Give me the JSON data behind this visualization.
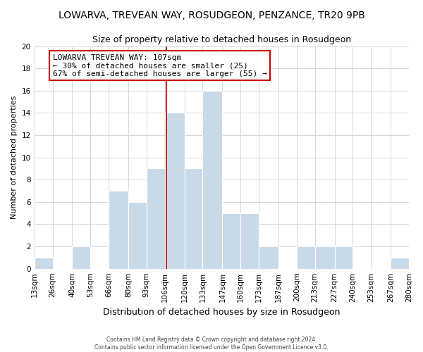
{
  "title": "LOWARVA, TREVEAN WAY, ROSUDGEON, PENZANCE, TR20 9PB",
  "subtitle": "Size of property relative to detached houses in Rosudgeon",
  "xlabel": "Distribution of detached houses by size in Rosudgeon",
  "ylabel": "Number of detached properties",
  "footer_line1": "Contains HM Land Registry data © Crown copyright and database right 2024.",
  "footer_line2": "Contains public sector information licensed under the Open Government Licence v3.0.",
  "bin_edges": [
    13,
    26,
    40,
    53,
    66,
    80,
    93,
    106,
    120,
    133,
    147,
    160,
    173,
    187,
    200,
    213,
    227,
    240,
    253,
    267,
    280
  ],
  "bin_labels": [
    "13sqm",
    "26sqm",
    "40sqm",
    "53sqm",
    "66sqm",
    "80sqm",
    "93sqm",
    "106sqm",
    "120sqm",
    "133sqm",
    "147sqm",
    "160sqm",
    "173sqm",
    "187sqm",
    "200sqm",
    "213sqm",
    "227sqm",
    "240sqm",
    "253sqm",
    "267sqm",
    "280sqm"
  ],
  "counts": [
    1,
    0,
    2,
    0,
    7,
    6,
    9,
    14,
    9,
    16,
    5,
    5,
    2,
    0,
    2,
    2,
    2,
    0,
    0,
    1
  ],
  "bar_color": "#c8d9e8",
  "bar_edgecolor": "#ffffff",
  "annotation_title": "LOWARVA TREVEAN WAY: 107sqm",
  "annotation_line2": "← 30% of detached houses are smaller (25)",
  "annotation_line3": "67% of semi-detached houses are larger (55) →",
  "annotation_box_edgecolor": "#cc0000",
  "annotation_box_facecolor": "#ffffff",
  "vline_x": 107,
  "vline_color": "#cc0000",
  "ylim": [
    0,
    20
  ],
  "yticks": [
    0,
    2,
    4,
    6,
    8,
    10,
    12,
    14,
    16,
    18,
    20
  ],
  "background_color": "#ffffff",
  "grid_color": "#d0d8e0",
  "title_fontsize": 10,
  "subtitle_fontsize": 9,
  "xlabel_fontsize": 9,
  "ylabel_fontsize": 8,
  "tick_fontsize": 7.5,
  "annotation_fontsize": 8
}
